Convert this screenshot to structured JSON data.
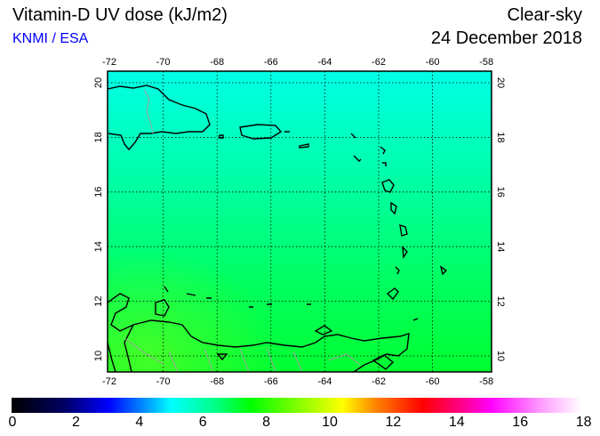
{
  "header": {
    "title": "Vitamin-D UV dose (kJ/m2)",
    "credit": "KNMI / ESA",
    "condition": "Clear-sky",
    "date": "24 December 2018"
  },
  "map": {
    "lon_ticks": [
      "-72",
      "-70",
      "-68",
      "-66",
      "-64",
      "-62",
      "-60",
      "-58"
    ],
    "lat_ticks": [
      "20",
      "18",
      "16",
      "14",
      "12",
      "10"
    ],
    "region": "Caribbean",
    "colors": {
      "top": "#00ffe6",
      "middle": "#00ff90",
      "bottom": "#00ff30",
      "coast": "#000000",
      "border": "#a0a0a0"
    }
  },
  "colorbar": {
    "labels": [
      "0",
      "2",
      "4",
      "6",
      "8",
      "10",
      "12",
      "14",
      "16",
      "18"
    ],
    "min": 0,
    "max": 18
  }
}
